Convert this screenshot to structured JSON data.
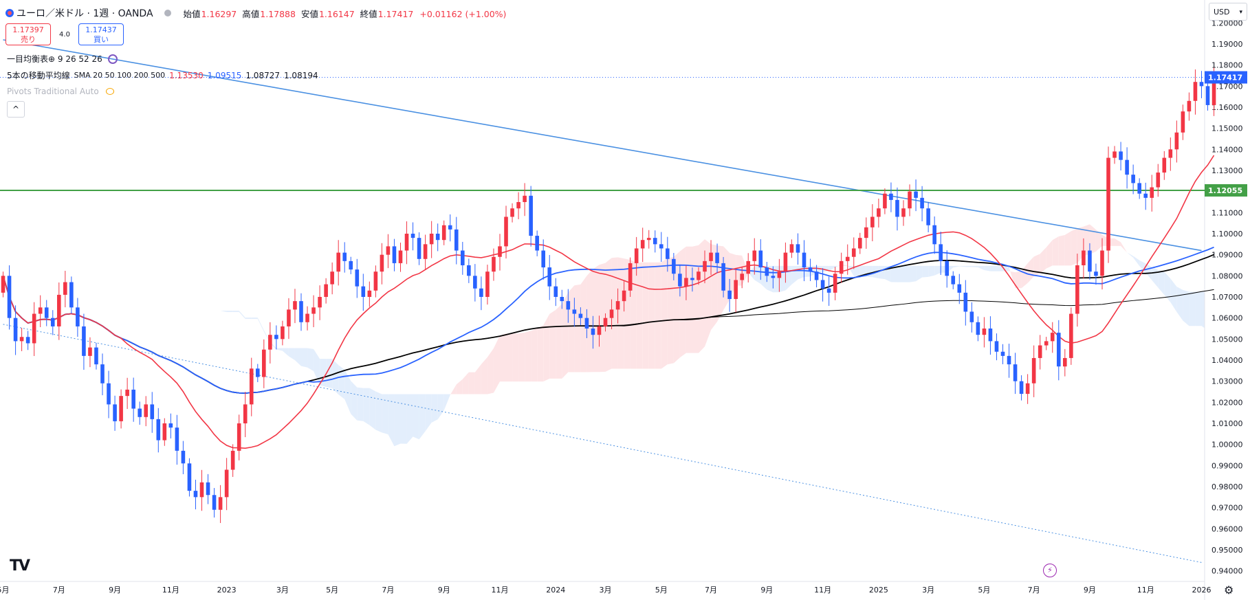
{
  "header": {
    "symbol_title": "ユーロ／米ドル · 1週 · OANDA",
    "open_label": "始値",
    "open_value": "1.16297",
    "high_label": "高値",
    "high_value": "1.17888",
    "low_label": "安値",
    "low_value": "1.16147",
    "close_label": "終値",
    "close_value": "1.17417",
    "change_value": "+0.01162 (+1.00%)"
  },
  "trade": {
    "sell_price": "1.17397",
    "sell_label": "売り",
    "spread": "4.0",
    "buy_price": "1.17437",
    "buy_label": "買い"
  },
  "indicators": {
    "ichimoku_label": "一目均衡表⊕ 9 26 52 26",
    "ma_label": "5本の移動平均線",
    "ma_params": "SMA 20 50 100 200 500",
    "ma_values": [
      {
        "text": "1.13530",
        "color": "#f23645"
      },
      {
        "text": "1.09515",
        "color": "#2962ff"
      },
      {
        "text": "1.08727",
        "color": "#131722"
      },
      {
        "text": "1.08194",
        "color": "#131722"
      }
    ],
    "pivots_label": "Pivots Traditional Auto"
  },
  "ui": {
    "currency": "USD",
    "collapse_icon": "chevron-up-icon",
    "logo": "TV",
    "bolt_icon": "lightning-icon",
    "settings_icon": "gear-icon"
  },
  "colors": {
    "up": "#f23645",
    "down": "#2962ff",
    "sma20": "#f23645",
    "sma50": "#2962ff",
    "sma100": "#000000",
    "sma200": "#000000",
    "trendline": "#4a90e2",
    "horizontal_line": "#43a047",
    "cloud_bull": "#fde4e6",
    "cloud_bear": "#e3eefc"
  },
  "chart_data": {
    "type": "candlestick",
    "timeframe": "1週",
    "y_range": [
      0.935,
      1.205
    ],
    "y_ticks": [
      "1.20000",
      "1.19000",
      "1.18000",
      "1.17000",
      "1.16000",
      "1.15000",
      "1.14000",
      "1.13000",
      "1.12000",
      "1.11000",
      "1.10000",
      "1.09000",
      "1.08000",
      "1.07000",
      "1.06000",
      "1.05000",
      "1.04000",
      "1.03000",
      "1.02000",
      "1.01000",
      "1.00000",
      "0.99000",
      "0.98000",
      "0.97000",
      "0.96000",
      "0.95000",
      "0.94000"
    ],
    "x_tick_labels": [
      "5月",
      "7月",
      "9月",
      "11月",
      "2023",
      "3月",
      "5月",
      "7月",
      "9月",
      "11月",
      "2024",
      "3月",
      "5月",
      "7月",
      "9月",
      "11月",
      "2025",
      "3月",
      "5月",
      "7月",
      "9月",
      "11月",
      "2026"
    ],
    "x_tick_weeks": [
      0,
      9,
      18,
      27,
      36,
      45,
      53,
      62,
      71,
      80,
      89,
      97,
      106,
      114,
      123,
      132,
      141,
      149,
      158,
      166,
      175,
      184,
      193
    ],
    "current_price": {
      "value": 1.17417,
      "label": "1.17417"
    },
    "horizontal_level": {
      "value": 1.12055,
      "label": "1.12055"
    },
    "trendlines": [
      {
        "from": [
          0,
          1.192
        ],
        "to": [
          193,
          1.092
        ],
        "style": "solid"
      },
      {
        "from": [
          0,
          1.057
        ],
        "to": [
          193,
          0.944
        ],
        "style": "dotted"
      }
    ],
    "candles_weekly_closes": [
      1.08,
      1.06,
      1.049,
      1.051,
      1.048,
      1.062,
      1.065,
      1.06,
      1.056,
      1.071,
      1.077,
      1.065,
      1.056,
      1.042,
      1.046,
      1.038,
      1.029,
      1.019,
      1.011,
      1.023,
      1.026,
      1.017,
      1.013,
      1.019,
      1.012,
      1.002,
      1.01,
      1.008,
      0.997,
      0.991,
      0.978,
      0.975,
      0.982,
      0.976,
      0.969,
      0.975,
      0.988,
      0.997,
      1.01,
      1.019,
      1.036,
      1.032,
      1.045,
      1.052,
      1.05,
      1.056,
      1.064,
      1.068,
      1.058,
      1.062,
      1.065,
      1.07,
      1.076,
      1.082,
      1.091,
      1.087,
      1.083,
      1.075,
      1.07,
      1.073,
      1.082,
      1.09,
      1.094,
      1.086,
      1.092,
      1.1,
      1.098,
      1.088,
      1.095,
      1.1,
      1.097,
      1.104,
      1.102,
      1.092,
      1.085,
      1.08,
      1.074,
      1.07,
      1.082,
      1.089,
      1.094,
      1.108,
      1.112,
      1.115,
      1.118,
      1.099,
      1.092,
      1.084,
      1.075,
      1.07,
      1.068,
      1.064,
      1.062,
      1.06,
      1.055,
      1.052,
      1.056,
      1.06,
      1.064,
      1.068,
      1.073,
      1.086,
      1.093,
      1.097,
      1.098,
      1.095,
      1.093,
      1.088,
      1.081,
      1.075,
      1.079,
      1.078,
      1.082,
      1.087,
      1.091,
      1.086,
      1.073,
      1.069,
      1.078,
      1.081,
      1.087,
      1.092,
      1.084,
      1.08,
      1.079,
      1.082,
      1.091,
      1.095,
      1.091,
      1.084,
      1.082,
      1.078,
      1.074,
      1.072,
      1.081,
      1.087,
      1.089,
      1.093,
      1.098,
      1.103,
      1.108,
      1.112,
      1.119,
      1.116,
      1.108,
      1.112,
      1.12,
      1.117,
      1.112,
      1.104,
      1.095,
      1.087,
      1.08,
      1.076,
      1.072,
      1.063,
      1.058,
      1.052,
      1.055,
      1.049,
      1.044,
      1.042,
      1.038,
      1.03,
      1.024,
      1.029,
      1.041,
      1.047,
      1.049,
      1.053,
      1.037,
      1.041,
      1.062,
      1.085,
      1.092,
      1.082,
      1.08,
      1.092,
      1.136,
      1.139,
      1.135,
      1.128,
      1.124,
      1.119,
      1.117,
      1.122,
      1.129,
      1.136,
      1.14,
      1.148,
      1.158,
      1.163,
      1.172,
      1.17,
      1.161,
      1.174
    ]
  }
}
